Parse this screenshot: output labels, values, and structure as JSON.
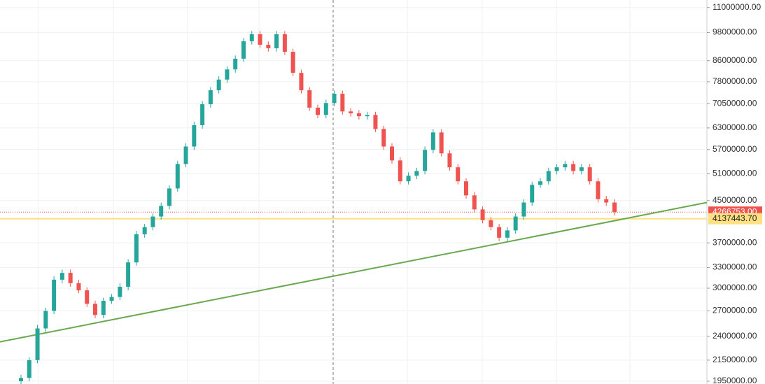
{
  "chart_data": {
    "type": "candlestick",
    "log_scale": true,
    "grid": true,
    "up_color": "#26a69a",
    "down_color": "#ef5350",
    "ylim": [
      11390000,
      1925000
    ],
    "yticks": [
      {
        "value": 11000000,
        "label": "11000000.00"
      },
      {
        "value": 9800000,
        "label": "9800000.00"
      },
      {
        "value": 8600000,
        "label": "8600000.00"
      },
      {
        "value": 7800000,
        "label": "7800000.00"
      },
      {
        "value": 7050000,
        "label": "7050000.00"
      },
      {
        "value": 6300000,
        "label": "6300000.00"
      },
      {
        "value": 5700000,
        "label": "5700000.00"
      },
      {
        "value": 5100000,
        "label": "5100000.00"
      },
      {
        "value": 4500000,
        "label": "4500000.00"
      },
      {
        "value": 3700000,
        "label": "3700000.00"
      },
      {
        "value": 3300000,
        "label": "3300000.00"
      },
      {
        "value": 3000000,
        "label": "3000000.00"
      },
      {
        "value": 2700000,
        "label": "2700000.00"
      },
      {
        "value": 2400000,
        "label": "2400000.00"
      },
      {
        "value": 2150000,
        "label": "2150000.00"
      },
      {
        "value": 1950000,
        "label": "1950000.00"
      }
    ],
    "open": [
      1950000,
      1980000,
      2150000,
      2490000,
      2700000,
      3120000,
      3220000,
      3070000,
      2970000,
      2790000,
      2650000,
      2830000,
      2880000,
      3020000,
      3380000,
      3850000,
      3980000,
      4180000,
      4390000,
      4760000,
      5330000,
      5780000,
      6380000,
      7030000,
      7500000,
      7880000,
      8260000,
      8680000,
      9410000,
      9720000,
      9260000,
      9110000,
      9720000,
      8960000,
      8130000,
      7500000,
      6920000,
      6690000,
      7070000,
      7380000,
      6800000,
      6740000,
      6650000,
      6690000,
      6270000,
      5780000,
      5420000,
      4920000,
      5050000,
      5160000,
      5690000,
      6170000,
      5600000,
      5250000,
      4920000,
      4610000,
      4320000,
      4110000,
      3980000,
      3790000,
      3920000,
      4180000,
      4460000,
      4840000,
      4920000,
      5160000,
      5250000,
      5330000,
      5160000,
      5250000,
      4920000,
      4530000,
      4460000
    ],
    "high": [
      2010000,
      2180000,
      2530000,
      2740000,
      3170000,
      3270000,
      3270000,
      3120000,
      3010000,
      2830000,
      2870000,
      2920000,
      3070000,
      3430000,
      3910000,
      4040000,
      4240000,
      4460000,
      4830000,
      5410000,
      5870000,
      6480000,
      7140000,
      7610000,
      8000000,
      8380000,
      8810000,
      9550000,
      9870000,
      9870000,
      9400000,
      9870000,
      9870000,
      9090000,
      8250000,
      7610000,
      7020000,
      7180000,
      7490000,
      7490000,
      6900000,
      6840000,
      6790000,
      6790000,
      6360000,
      5870000,
      5500000,
      5130000,
      5240000,
      5780000,
      6260000,
      6260000,
      5680000,
      5330000,
      4990000,
      4680000,
      4380000,
      4170000,
      4040000,
      3980000,
      4240000,
      4530000,
      4910000,
      4990000,
      5240000,
      5330000,
      5410000,
      5410000,
      5330000,
      5330000,
      4990000,
      4600000,
      4530000
    ],
    "low": [
      1920000,
      1950000,
      2120000,
      2450000,
      2660000,
      3070000,
      3020000,
      2930000,
      2750000,
      2610000,
      2610000,
      2790000,
      2840000,
      2970000,
      3330000,
      3790000,
      3920000,
      4120000,
      4320000,
      4690000,
      5250000,
      5690000,
      6280000,
      6920000,
      7390000,
      7760000,
      8140000,
      8550000,
      9270000,
      9120000,
      8970000,
      8970000,
      8830000,
      8010000,
      7390000,
      6820000,
      6590000,
      6590000,
      6960000,
      6700000,
      6640000,
      6550000,
      6550000,
      6180000,
      5690000,
      5340000,
      4850000,
      4850000,
      4970000,
      5080000,
      5600000,
      5520000,
      5170000,
      4850000,
      4540000,
      4260000,
      4050000,
      3920000,
      3730000,
      3730000,
      3860000,
      4120000,
      4390000,
      4770000,
      4850000,
      5080000,
      5170000,
      5080000,
      5080000,
      4850000,
      4460000,
      4390000,
      4200000
    ],
    "close": [
      1980000,
      2150000,
      2490000,
      2700000,
      3120000,
      3220000,
      3070000,
      2970000,
      2790000,
      2650000,
      2830000,
      2880000,
      3020000,
      3380000,
      3850000,
      3980000,
      4180000,
      4390000,
      4760000,
      5330000,
      5780000,
      6380000,
      7030000,
      7500000,
      7880000,
      8260000,
      8680000,
      9410000,
      9720000,
      9260000,
      9110000,
      9720000,
      8960000,
      8130000,
      7500000,
      6920000,
      6690000,
      7070000,
      7380000,
      6800000,
      6740000,
      6650000,
      6690000,
      6270000,
      5780000,
      5420000,
      4920000,
      5050000,
      5160000,
      5690000,
      6170000,
      5600000,
      5250000,
      4920000,
      4610000,
      4320000,
      4110000,
      3980000,
      3790000,
      3920000,
      4180000,
      4460000,
      4840000,
      4920000,
      5160000,
      5250000,
      5330000,
      5160000,
      5250000,
      4920000,
      4530000,
      4460000,
      4266753
    ],
    "last_price": {
      "value": 4266753,
      "label": "4266753.00",
      "color": "#ef5350"
    },
    "level": {
      "value": 4137443.7,
      "label": "4137443.70",
      "color": "#ffe082"
    },
    "trendline": {
      "values": [
        2340000,
        4460000
      ],
      "color": "#6aa84f"
    }
  }
}
